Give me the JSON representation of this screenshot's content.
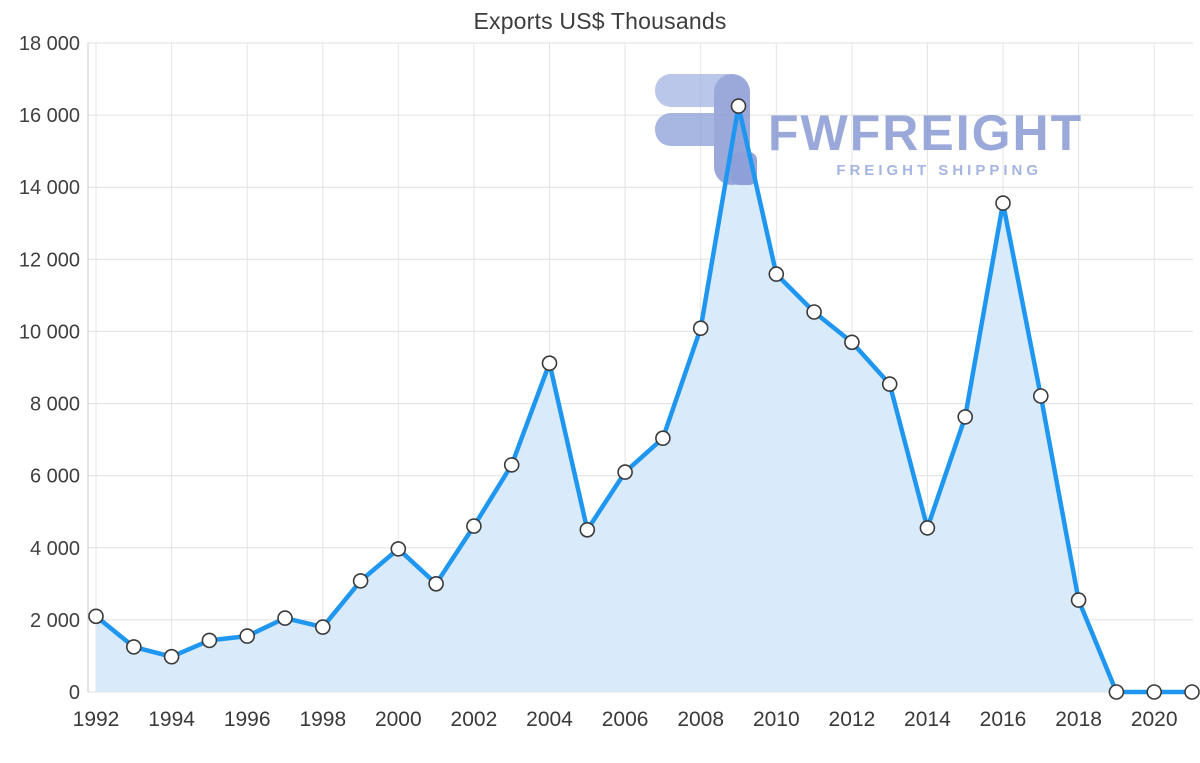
{
  "chart_data": {
    "type": "area",
    "title": "Exports US$ Thousands",
    "x": [
      1992,
      1993,
      1994,
      1995,
      1996,
      1997,
      1998,
      1999,
      2000,
      2001,
      2002,
      2003,
      2004,
      2005,
      2006,
      2007,
      2008,
      2009,
      2010,
      2011,
      2012,
      2013,
      2014,
      2015,
      2016,
      2017,
      2018,
      2019,
      2020,
      2021
    ],
    "values": [
      2100,
      1250,
      980,
      1430,
      1550,
      2050,
      1800,
      3080,
      3970,
      3000,
      4600,
      6300,
      9120,
      4500,
      6100,
      7040,
      10090,
      16250,
      11590,
      10540,
      9700,
      8540,
      4550,
      7630,
      13560,
      8210,
      2550,
      0,
      0,
      0
    ],
    "xlabel": "",
    "ylabel": "",
    "ylim": [
      0,
      18000
    ],
    "ytick_step": 2000,
    "xtick_step": 2,
    "ytick_labels": [
      "0",
      "2 000",
      "4 000",
      "6 000",
      "8 000",
      "10 000",
      "12 000",
      "14 000",
      "16 000",
      "18 000"
    ],
    "xtick_labels": [
      "1992",
      "1994",
      "1996",
      "1998",
      "2000",
      "2002",
      "2004",
      "2006",
      "2008",
      "2010",
      "2012",
      "2014",
      "2016",
      "2018",
      "2020"
    ],
    "grid": true,
    "legend": "none",
    "colors": {
      "line": "#1f97f0",
      "fill": "#d9eafb",
      "marker_fill": "#ffffff",
      "marker_stroke": "#3a3a3a",
      "grid": "#e0e0e0",
      "axis": "#c9c9c9",
      "text": "#3f3f3f"
    }
  },
  "watermark": {
    "brand": "FWFREIGHT",
    "subtitle": "FREIGHT SHIPPING",
    "color": "#8194d2"
  }
}
